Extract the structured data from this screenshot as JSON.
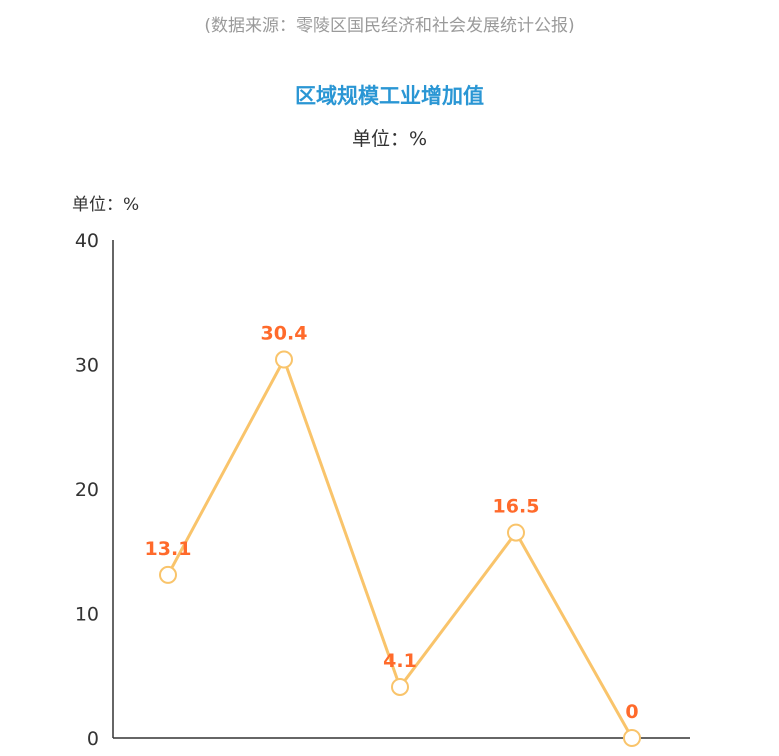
{
  "source_note": "(数据来源：零陵区国民经济和社会发展统计公报)",
  "chart_data": {
    "type": "line",
    "title": "区域规模工业增加值",
    "subtitle": "单位：%",
    "ylabel": "单位：%",
    "xlabel": "",
    "categories": [
      "",
      "",
      "",
      "",
      ""
    ],
    "values": [
      13.1,
      30.4,
      4.1,
      16.5,
      0
    ],
    "ylim": [
      0,
      40
    ],
    "yticks": [
      0,
      10,
      20,
      30,
      40
    ],
    "grid": false,
    "colors": {
      "line": "#f9c46b",
      "label": "#ff6a2b",
      "marker_fill": "#ffffff"
    }
  }
}
